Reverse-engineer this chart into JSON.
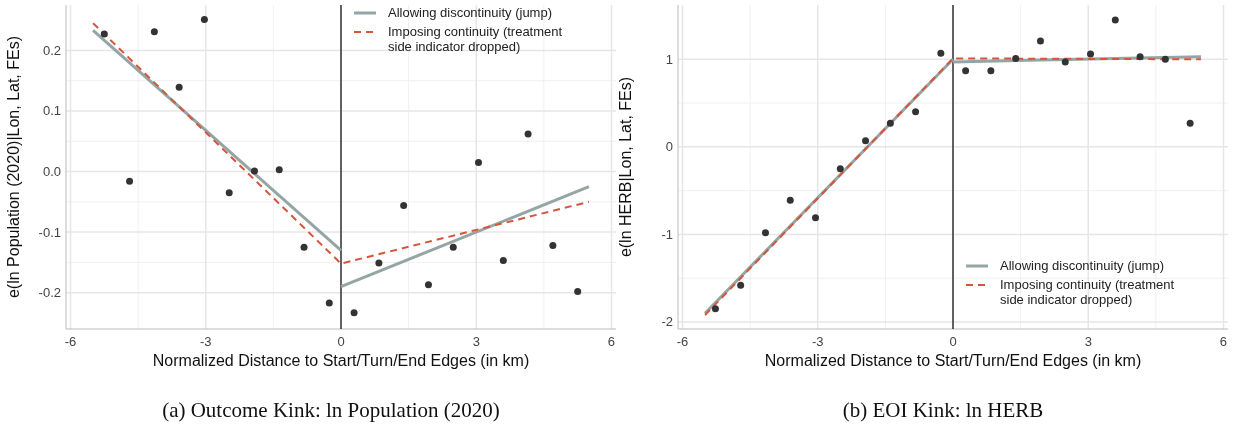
{
  "chart_data": [
    {
      "type": "scatter",
      "title": "(a) Outcome Kink: ln Population (2020)",
      "xlabel": "Normalized Distance to Start/Turn/End Edges (in km)",
      "ylabel": "e(ln Population (2020)|Lon, Lat, FEs)",
      "xlim": [
        -6.1,
        6.1
      ],
      "ylim": [
        -0.26,
        0.275
      ],
      "xticks": [
        -6,
        -3,
        0,
        3,
        6
      ],
      "yticks": [
        -0.2,
        {
          "value": -0.1,
          "label": "-0.1"
        },
        {
          "value": 0,
          "label": "0.0"
        },
        0.1,
        0.2
      ],
      "grid": true,
      "legend": "top right",
      "ref_lines": [
        {
          "axis": "x",
          "value": 0,
          "color": "#333333"
        }
      ],
      "series": [
        {
          "color": "#333333",
          "marker": "circle",
          "x": [
            -5.25,
            -4.69,
            -4.14,
            -3.59,
            -3.03,
            -2.48,
            -1.92,
            -1.37,
            -0.82,
            -0.26,
            0.29,
            0.84,
            1.39,
            1.94,
            2.49,
            3.05,
            3.6,
            4.15,
            4.7,
            5.25
          ],
          "values": [
            0.227,
            -0.016,
            0.231,
            0.139,
            0.251,
            -0.035,
            0.001,
            0.003,
            -0.125,
            -0.217,
            -0.233,
            -0.151,
            -0.056,
            -0.187,
            -0.125,
            0.015,
            -0.147,
            0.062,
            -0.122,
            -0.198
          ]
        },
        {
          "type": "line",
          "name": "Allowing discontinuity (jump)",
          "color": "#95a5a6",
          "line_style": "solid",
          "x": [
            -5.5,
            0
          ],
          "values": [
            0.233,
            -0.13
          ]
        },
        {
          "type": "line",
          "color": "#95a5a6",
          "line_style": "solid",
          "x": [
            0,
            5.5
          ],
          "values": [
            -0.19,
            -0.025
          ]
        },
        {
          "type": "line",
          "name": "Imposing continuity (treatment side indicator dropped)",
          "color": "#d5553a",
          "line_style": "dashed",
          "x": [
            -5.5,
            0,
            5.5
          ],
          "values": [
            0.245,
            -0.152,
            -0.05
          ]
        }
      ]
    },
    {
      "type": "scatter",
      "title": "(b) EOI Kink: ln HERB",
      "xlabel": "Normalized Distance to Start/Turn/End Edges (in km)",
      "ylabel": "e(ln HERB|Lon, Lat, FEs)",
      "xlim": [
        -6.1,
        6.1
      ],
      "ylim": [
        -2.08,
        1.62
      ],
      "xticks": [
        -6,
        -3,
        0,
        3,
        6
      ],
      "yticks": [
        -2,
        -1,
        0,
        1
      ],
      "grid": true,
      "legend": "bottom right",
      "ref_lines": [
        {
          "axis": "x",
          "value": 0,
          "color": "#333333"
        }
      ],
      "series": [
        {
          "color": "#333333",
          "marker": "circle",
          "x": [
            -5.27,
            -4.71,
            -4.16,
            -3.61,
            -3.05,
            -2.5,
            -1.94,
            -1.39,
            -0.83,
            -0.27,
            0.28,
            0.84,
            1.39,
            1.94,
            2.49,
            3.05,
            3.6,
            4.15,
            4.71,
            5.26
          ],
          "values": [
            -1.85,
            -1.58,
            -0.98,
            -0.61,
            -0.81,
            -0.25,
            0.07,
            0.27,
            0.4,
            1.07,
            0.87,
            0.87,
            1.01,
            1.21,
            0.97,
            1.06,
            1.45,
            1.03,
            1.0,
            0.27
          ]
        },
        {
          "type": "line",
          "name": "Allowing discontinuity (jump)",
          "color": "#95a5a6",
          "line_style": "solid",
          "x": [
            -5.5,
            0
          ],
          "values": [
            -1.9,
            1.0
          ]
        },
        {
          "type": "line",
          "color": "#95a5a6",
          "line_style": "solid",
          "x": [
            0,
            5.5
          ],
          "values": [
            0.97,
            1.03
          ]
        },
        {
          "type": "line",
          "name": "Imposing continuity (treatment side indicator dropped)",
          "color": "#d5553a",
          "line_style": "dashed",
          "x": [
            -5.5,
            0,
            5.5
          ],
          "values": [
            -1.92,
            1.01,
            1.0
          ]
        }
      ]
    }
  ]
}
